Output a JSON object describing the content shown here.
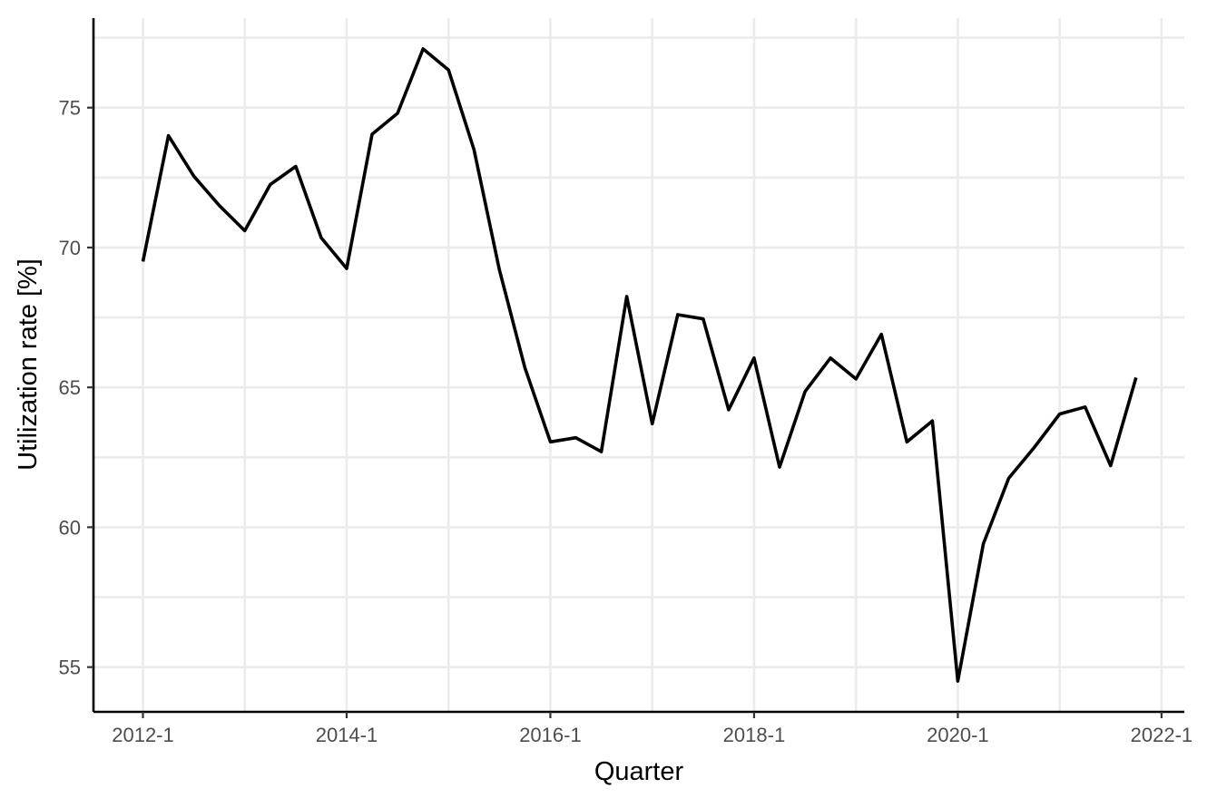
{
  "chart_data": {
    "type": "line",
    "title": "",
    "xlabel": "Quarter",
    "ylabel": "Utilization rate [%]",
    "x_ticks": [
      "2012-1",
      "2014-1",
      "2016-1",
      "2018-1",
      "2020-1",
      "2022-1"
    ],
    "y_ticks": [
      55,
      60,
      65,
      70,
      75
    ],
    "ylim": [
      53.4,
      78.2
    ],
    "grid": true,
    "legend": "none",
    "line_color": "#000000",
    "series": [
      {
        "x": [
          "2012-1",
          "2012-2",
          "2012-3",
          "2012-4",
          "2013-1",
          "2013-2",
          "2013-3",
          "2013-4",
          "2014-1",
          "2014-2",
          "2014-3",
          "2014-4",
          "2015-1",
          "2015-2",
          "2015-3",
          "2015-4",
          "2016-1",
          "2016-2",
          "2016-3",
          "2016-4",
          "2017-1",
          "2017-2",
          "2017-3",
          "2017-4",
          "2018-1",
          "2018-2",
          "2018-3",
          "2018-4",
          "2019-1",
          "2019-2",
          "2019-3",
          "2019-4",
          "2020-1",
          "2020-2",
          "2020-3",
          "2020-4",
          "2021-1",
          "2021-2",
          "2021-3",
          "2021-4"
        ],
        "values": [
          69.5,
          74.0,
          72.55,
          71.5,
          70.6,
          72.25,
          72.9,
          70.35,
          69.25,
          74.05,
          74.8,
          77.1,
          76.35,
          73.5,
          69.2,
          65.7,
          63.05,
          63.2,
          62.7,
          68.25,
          63.7,
          67.6,
          67.45,
          64.2,
          66.05,
          62.15,
          64.85,
          66.05,
          65.3,
          66.9,
          63.05,
          63.8,
          54.5,
          59.4,
          61.75,
          62.85,
          64.05,
          64.3,
          62.2,
          65.35
        ]
      }
    ]
  }
}
